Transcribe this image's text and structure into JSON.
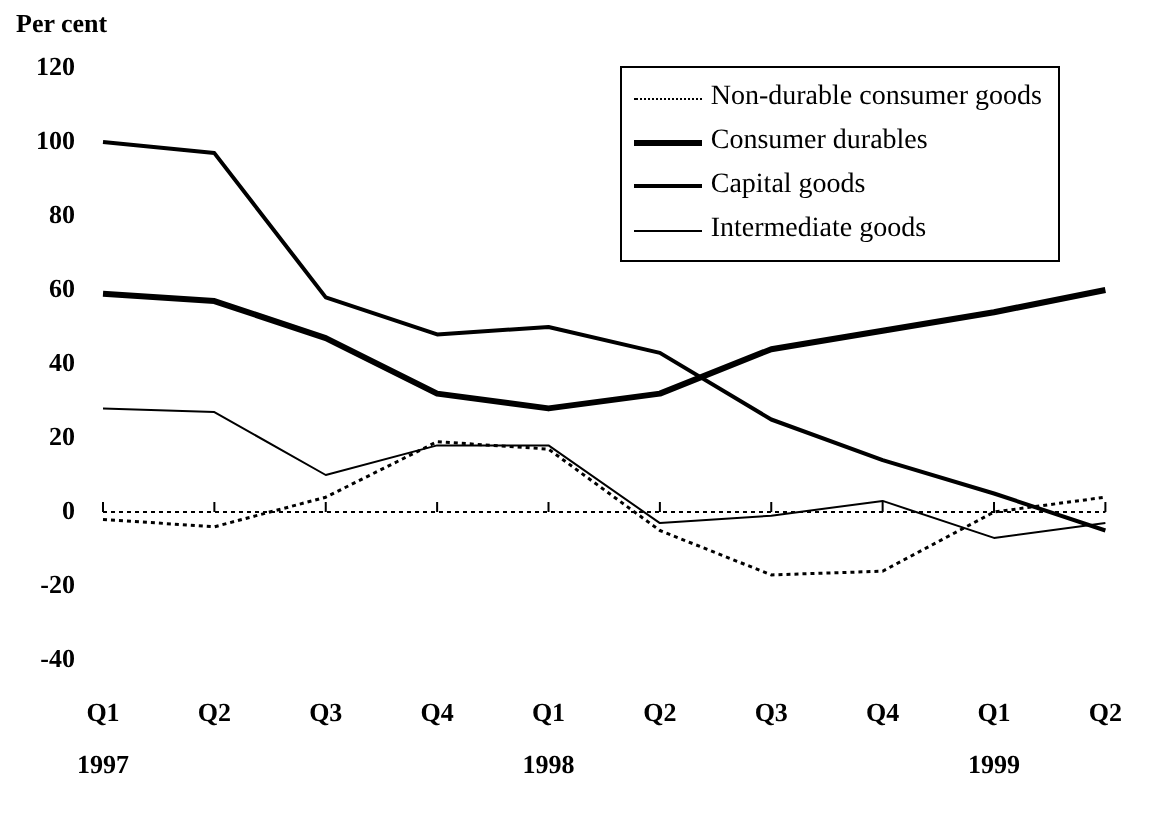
{
  "chart_data": {
    "type": "line",
    "ylabel": "Per cent",
    "categories": [
      "Q1\n1997",
      "Q2",
      "Q3",
      "Q4",
      "Q1\n1998",
      "Q2",
      "Q3",
      "Q4",
      "Q1\n1999",
      "Q2"
    ],
    "series": [
      {
        "name": "Non-durable consumer goods",
        "color": "#000000",
        "line_style": "dotted",
        "values": [
          -2,
          -4,
          4,
          19,
          17,
          -5,
          -17,
          -16,
          0,
          4
        ]
      },
      {
        "name": "Consumer durables",
        "color": "#000000",
        "values": [
          59,
          57,
          47,
          32,
          28,
          32,
          44,
          49,
          54,
          60
        ]
      },
      {
        "name": "Capital goods",
        "color": "#000000",
        "values": [
          100,
          97,
          58,
          48,
          50,
          43,
          25,
          14,
          5,
          -5
        ]
      },
      {
        "name": "Intermediate goods",
        "color": "#000000",
        "values": [
          28,
          27,
          10,
          18,
          18,
          -3,
          -1,
          3,
          -7,
          -3
        ]
      }
    ],
    "ylim": [
      -40,
      120
    ],
    "yticks": [
      -40,
      -20,
      0,
      20,
      40,
      60,
      80,
      100,
      120
    ],
    "ref_lines": [
      {
        "axis": "y",
        "value": 0,
        "line_style": "dotted",
        "color": "#000000"
      }
    ],
    "grid": false,
    "legend": "top right",
    "marker": "none"
  }
}
